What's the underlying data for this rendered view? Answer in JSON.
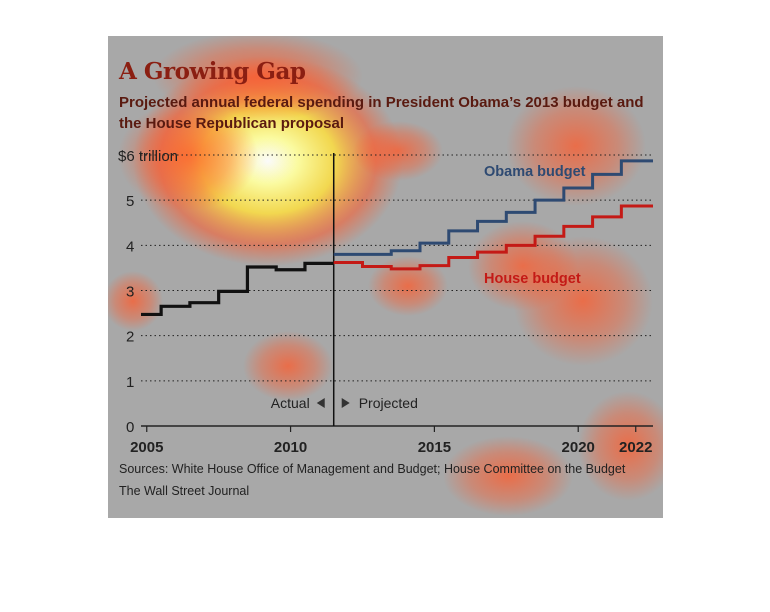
{
  "chart_data": {
    "type": "line",
    "title": "A Growing Gap",
    "subtitle": "Projected annual federal spending in President Obama’s 2013 budget and the House Republican proposal",
    "y_top_label": "$6 trillion",
    "y_ticks": [
      0,
      1,
      2,
      3,
      4,
      5
    ],
    "x_ticks": [
      2005,
      2010,
      2015,
      2020,
      2022
    ],
    "xlim": [
      2004.8,
      2022.6
    ],
    "ylim": [
      0,
      6
    ],
    "divider_year": 2011.5,
    "actual_label": "Actual",
    "projected_label": "Projected",
    "series": [
      {
        "name": "Actual",
        "color": "#111111",
        "x": [
          2005,
          2006,
          2007,
          2008,
          2009,
          2010,
          2011
        ],
        "values": [
          2.47,
          2.65,
          2.73,
          2.98,
          3.52,
          3.46,
          3.6
        ]
      },
      {
        "name": "Obama budget",
        "color": "#2e4a72",
        "x": [
          2012,
          2013,
          2014,
          2015,
          2016,
          2017,
          2018,
          2019,
          2020,
          2021,
          2022
        ],
        "values": [
          3.8,
          3.8,
          3.88,
          4.05,
          4.32,
          4.53,
          4.73,
          5.0,
          5.27,
          5.57,
          5.87
        ]
      },
      {
        "name": "House budget",
        "color": "#c41a16",
        "x": [
          2012,
          2013,
          2014,
          2015,
          2016,
          2017,
          2018,
          2019,
          2020,
          2021,
          2022
        ],
        "values": [
          3.62,
          3.53,
          3.48,
          3.55,
          3.73,
          3.85,
          4.0,
          4.2,
          4.42,
          4.63,
          4.87
        ]
      }
    ]
  },
  "source": "Sources: White House Office of Management and Budget; House Committee on the Budget",
  "credit": "The Wall Street Journal",
  "heatmap_colors": {
    "hot": "#ffffa0",
    "mid": "#ffe040",
    "warm": "#ff5a2a"
  }
}
